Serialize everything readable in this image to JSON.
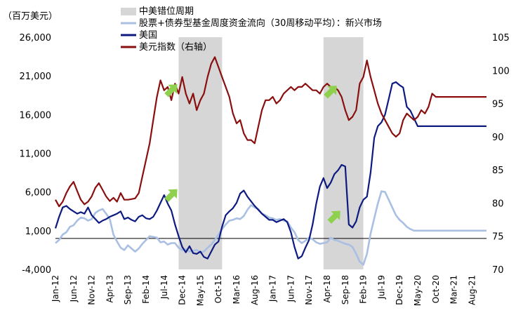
{
  "chart_data": {
    "type": "line",
    "unit_label": "（百万美元）",
    "colors": {
      "em_flow": "#a9bfe3",
      "us": "#0d1a80",
      "usd_index": "#8a0f0f",
      "shade": "#d6d6d6",
      "arrow": "#8fd14f",
      "negative_tick": "#e00000"
    },
    "x_categories": [
      "Jan-12",
      "Jun-12",
      "Nov-12",
      "Apr-13",
      "Sep-13",
      "Feb-14",
      "Jul-14",
      "Dec-14",
      "May-15",
      "Oct-15",
      "Mar-16",
      "Aug-16",
      "Jan-17",
      "Jun-17",
      "Nov-17",
      "Apr-18",
      "Sep-18",
      "Feb-19",
      "Jul-19",
      "Dec-19",
      "May-20",
      "Oct-20",
      "Mar-21",
      "Aug-21"
    ],
    "left_axis": {
      "min": -4000,
      "max": 26000,
      "ticks": [
        -4000,
        1000,
        6000,
        11000,
        16000,
        21000,
        26000
      ],
      "tick_labels": [
        "-4,000",
        "1,000",
        "6,000",
        "11,000",
        "16,000",
        "21,000",
        "26,000"
      ],
      "zero_line": 0
    },
    "right_axis": {
      "min": 70,
      "max": 105,
      "ticks": [
        70,
        75,
        80,
        85,
        90,
        95,
        100,
        105
      ],
      "tick_labels": [
        "70",
        "75",
        "80",
        "85",
        "90",
        "95",
        "100",
        "105"
      ]
    },
    "legend": [
      {
        "key": "shade",
        "label": "中美错位周期"
      },
      {
        "key": "em_flow",
        "label": "股票+债券型基金周度资金流向（30周移动平均）：新兴市场"
      },
      {
        "key": "us",
        "label": "美国"
      },
      {
        "key": "usd_index",
        "label": "美元指数（右轴）"
      }
    ],
    "shaded_periods": [
      {
        "start": "Nov-14",
        "end": "Nov-15"
      },
      {
        "start": "Mar-18",
        "end": "Feb-19"
      }
    ],
    "series": [
      {
        "key": "em_flow",
        "name": "股票+债券型基金周度资金流向（30周移动平均）：新兴市场",
        "axis": "left",
        "t": [
          0,
          1,
          2,
          3,
          4,
          5,
          6,
          7,
          8,
          9,
          10,
          11,
          12,
          13,
          14,
          15,
          16,
          17,
          18,
          19,
          20,
          21,
          22,
          23,
          24,
          25,
          26,
          27,
          28,
          29,
          30,
          31,
          32,
          33,
          34,
          35,
          36,
          37,
          38,
          39,
          40,
          41,
          42,
          43,
          44,
          45,
          46,
          47,
          48,
          49,
          50,
          51,
          52,
          53,
          54,
          55,
          56,
          57,
          58,
          59,
          60,
          61,
          62,
          63,
          64,
          65,
          66,
          67,
          68,
          69,
          70,
          71,
          72,
          73,
          74,
          75,
          76,
          77,
          78,
          79,
          80,
          81,
          82,
          83,
          84,
          85,
          86,
          87,
          88,
          89,
          90,
          91,
          92,
          93,
          94,
          95,
          96,
          97,
          98,
          99,
          100,
          101,
          102,
          103,
          104,
          105,
          106,
          107,
          108,
          109,
          110,
          111,
          112,
          113,
          114,
          115,
          116,
          117,
          118,
          119
        ],
        "values": [
          -600,
          -200,
          500,
          800,
          1500,
          1700,
          2300,
          2700,
          2600,
          2300,
          2500,
          3300,
          3600,
          3800,
          3200,
          2500,
          500,
          -400,
          -1200,
          -1500,
          -900,
          -1300,
          -1700,
          -1300,
          -700,
          -200,
          300,
          200,
          100,
          -500,
          -400,
          -800,
          -600,
          -600,
          -1200,
          -1500,
          -1400,
          -1700,
          -1600,
          -1500,
          -1800,
          -1700,
          -1200,
          -800,
          -200,
          500,
          1200,
          1800,
          2300,
          2400,
          2600,
          2500,
          2900,
          3700,
          4300,
          4000,
          3800,
          3200,
          3000,
          2700,
          2600,
          2400,
          2500,
          2300,
          2200,
          1400,
          800,
          -200,
          -600,
          -300,
          100,
          -100,
          -500,
          -700,
          -600,
          -500,
          100,
          -200,
          -300,
          -500,
          -700,
          -800,
          -1100,
          -2000,
          -3000,
          -3400,
          -2000,
          600,
          2600,
          4500,
          6100,
          6000,
          5000,
          4000,
          3000,
          2400,
          2000,
          1500,
          1200,
          1000,
          1000,
          1000,
          1000,
          1000,
          1000,
          1000,
          1000,
          1000,
          1000,
          1000,
          1000,
          1000,
          1000,
          1000,
          1000,
          1000,
          1000,
          1000,
          1000,
          1000
        ]
      },
      {
        "key": "us",
        "name": "美国",
        "axis": "left",
        "t": [
          0,
          1,
          2,
          3,
          4,
          5,
          6,
          7,
          8,
          9,
          10,
          11,
          12,
          13,
          14,
          15,
          16,
          17,
          18,
          19,
          20,
          21,
          22,
          23,
          24,
          25,
          26,
          27,
          28,
          29,
          30,
          31,
          32,
          33,
          34,
          35,
          36,
          37,
          38,
          39,
          40,
          41,
          42,
          43,
          44,
          45,
          46,
          47,
          48,
          49,
          50,
          51,
          52,
          53,
          54,
          55,
          56,
          57,
          58,
          59,
          60,
          61,
          62,
          63,
          64,
          65,
          66,
          67,
          68,
          69,
          70,
          71,
          72,
          73,
          74,
          75,
          76,
          77,
          78,
          79,
          80,
          81,
          82,
          83,
          84,
          85,
          86,
          87,
          88,
          89,
          90,
          91,
          92,
          93,
          94,
          95,
          96,
          97,
          98,
          99,
          100,
          101,
          102,
          103,
          104,
          105,
          106,
          107,
          108,
          109,
          110,
          111,
          112,
          113,
          114,
          115,
          116,
          117,
          118,
          119
        ],
        "values": [
          1300,
          2800,
          4000,
          4200,
          3800,
          3500,
          3200,
          3400,
          3200,
          4000,
          3000,
          2500,
          2000,
          2300,
          2500,
          2800,
          3000,
          3200,
          3500,
          2500,
          2700,
          2400,
          2200,
          2800,
          3000,
          2600,
          2500,
          2800,
          3600,
          4600,
          5600,
          4500,
          3600,
          1800,
          300,
          -1100,
          -1800,
          -1000,
          -1900,
          -2000,
          -1700,
          -2400,
          -2600,
          -1700,
          -800,
          -400,
          1500,
          3000,
          3500,
          3900,
          4600,
          5800,
          6200,
          5400,
          4800,
          4200,
          3700,
          3200,
          2800,
          2400,
          2400,
          2100,
          2300,
          2500,
          2100,
          800,
          -1100,
          -2600,
          -2300,
          -1200,
          -200,
          1800,
          4500,
          6700,
          7800,
          6500,
          7200,
          8300,
          8800,
          9500,
          9300,
          1800,
          1400,
          2200,
          4000,
          5000,
          5400,
          8500,
          13000,
          14500,
          15000,
          16000,
          18000,
          20000,
          20200,
          19800,
          19500,
          17000,
          16500,
          15500,
          14500,
          14500,
          14500,
          14500,
          14500,
          14500,
          14500,
          14500,
          14500,
          14500,
          14500,
          14500,
          14500,
          14500,
          14500,
          14500,
          14500,
          14500,
          14500,
          14500
        ]
      },
      {
        "key": "usd_index",
        "name": "美元指数（右轴）",
        "axis": "right",
        "t": [
          0,
          1,
          2,
          3,
          4,
          5,
          6,
          7,
          8,
          9,
          10,
          11,
          12,
          13,
          14,
          15,
          16,
          17,
          18,
          19,
          20,
          21,
          22,
          23,
          24,
          25,
          26,
          27,
          28,
          29,
          30,
          31,
          32,
          33,
          34,
          35,
          36,
          37,
          38,
          39,
          40,
          41,
          42,
          43,
          44,
          45,
          46,
          47,
          48,
          49,
          50,
          51,
          52,
          53,
          54,
          55,
          56,
          57,
          58,
          59,
          60,
          61,
          62,
          63,
          64,
          65,
          66,
          67,
          68,
          69,
          70,
          71,
          72,
          73,
          74,
          75,
          76,
          77,
          78,
          79,
          80,
          81,
          82,
          83,
          84,
          85,
          86,
          87,
          88,
          89,
          90,
          91,
          92,
          93,
          94,
          95,
          96,
          97,
          98,
          99,
          100,
          101,
          102,
          103,
          104,
          105,
          106,
          107,
          108,
          109,
          110,
          111,
          112,
          113,
          114,
          115,
          116,
          117,
          118,
          119
        ],
        "values": [
          80.5,
          79.5,
          80.2,
          81.5,
          82.5,
          83.2,
          81.8,
          80.5,
          79.8,
          80.2,
          81.0,
          82.3,
          83.0,
          82.0,
          81.0,
          80.3,
          80.8,
          80.2,
          81.5,
          80.5,
          80.5,
          80.6,
          80.7,
          81.5,
          84.0,
          86.5,
          89.0,
          92.5,
          96.0,
          98.5,
          97.0,
          97.5,
          95.5,
          98.0,
          96.5,
          99.0,
          96.5,
          95.0,
          96.5,
          94.0,
          95.5,
          96.5,
          99.0,
          101.0,
          102.0,
          100.5,
          99.0,
          97.5,
          96.0,
          93.5,
          92.0,
          92.5,
          90.5,
          89.5,
          89.5,
          89.0,
          91.5,
          94.0,
          95.5,
          95.5,
          96.0,
          95.0,
          95.5,
          96.5,
          97.0,
          97.5,
          97.0,
          97.5,
          97.5,
          98.0,
          97.5,
          97.0,
          97.0,
          96.5,
          97.5,
          98.0,
          97.5,
          97.5,
          97.0,
          96.0,
          94.0,
          92.5,
          93.0,
          94.0,
          98.0,
          99.0,
          101.5,
          99.0,
          97.0,
          95.0,
          93.5,
          92.5,
          91.5,
          90.5,
          90.0,
          90.5,
          92.5,
          93.5,
          93.0,
          92.5,
          93.0,
          94.0,
          93.5,
          94.5,
          96.5,
          96.0,
          96.0,
          96.0,
          96.0,
          96.0,
          96.0,
          96.0,
          96.0,
          96.0,
          96.0,
          96.0,
          96.0,
          96.0,
          96.0,
          96.0
        ]
      }
    ]
  }
}
